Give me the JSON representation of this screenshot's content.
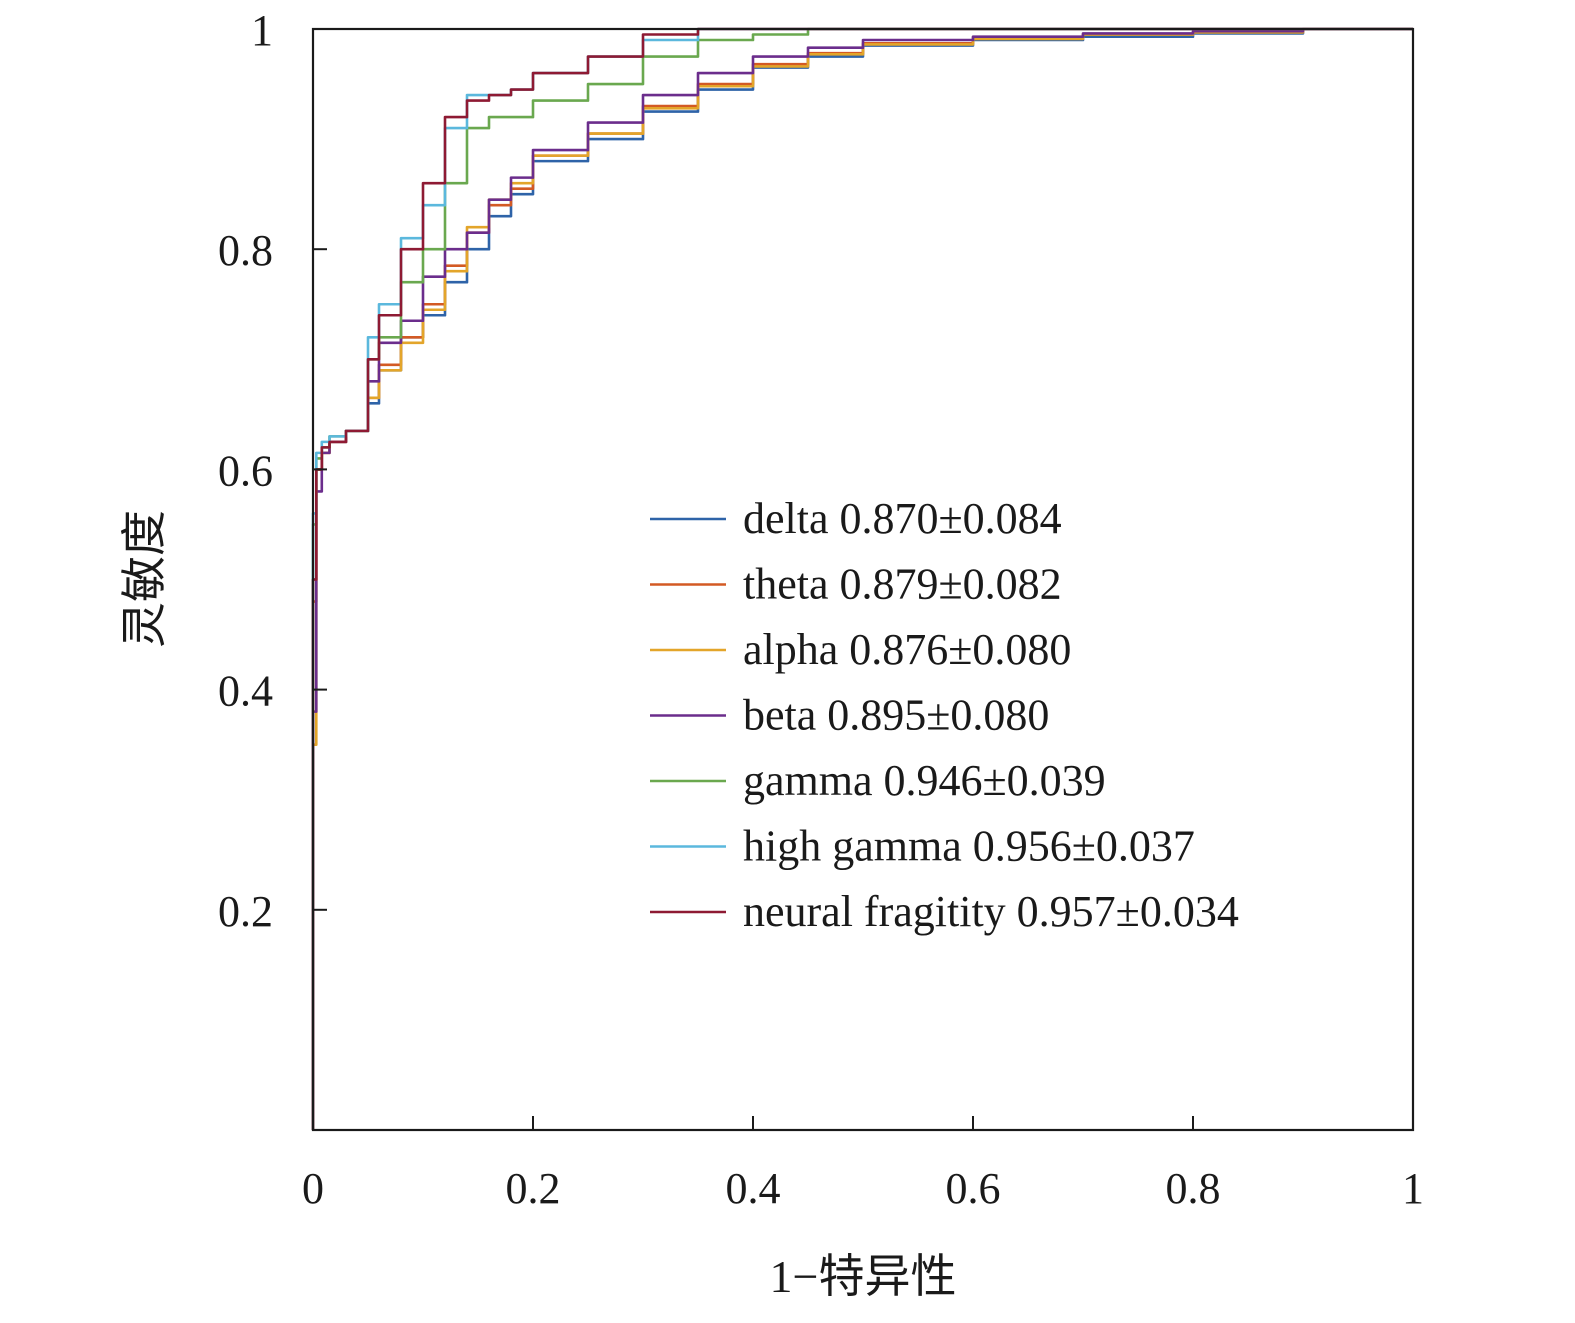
{
  "chart_data": {
    "type": "line",
    "title": "",
    "xlabel": "1−特异性",
    "ylabel": "灵敏度",
    "xlim": [
      0,
      1
    ],
    "ylim": [
      0,
      1
    ],
    "xticks": [
      "0",
      "0.2",
      "0.4",
      "0.6",
      "0.8",
      "1"
    ],
    "yticks": [
      "0.2",
      "0.4",
      "0.6",
      "0.8",
      "1"
    ],
    "xtick_values": [
      0,
      0.2,
      0.4,
      0.6,
      0.8,
      1
    ],
    "ytick_values": [
      0.2,
      0.4,
      0.6,
      0.8,
      1
    ],
    "grid": false,
    "legend_position": "right-middle",
    "series": [
      {
        "name": "delta 0.870±0.084",
        "color": "#2e63a8",
        "x": [
          0,
          0.003,
          0.008,
          0.015,
          0.03,
          0.05,
          0.06,
          0.08,
          0.1,
          0.12,
          0.14,
          0.16,
          0.18,
          0.2,
          0.25,
          0.3,
          0.35,
          0.4,
          0.45,
          0.5,
          0.6,
          0.7,
          0.8,
          0.9,
          1
        ],
        "y": [
          0,
          0.5,
          0.6,
          0.62,
          0.625,
          0.635,
          0.66,
          0.69,
          0.72,
          0.74,
          0.77,
          0.8,
          0.83,
          0.85,
          0.88,
          0.9,
          0.925,
          0.945,
          0.965,
          0.975,
          0.985,
          0.99,
          0.993,
          0.996,
          1
        ]
      },
      {
        "name": "theta 0.879±0.082",
        "color": "#d35a24",
        "x": [
          0,
          0.003,
          0.008,
          0.015,
          0.03,
          0.05,
          0.06,
          0.08,
          0.1,
          0.12,
          0.14,
          0.16,
          0.18,
          0.2,
          0.25,
          0.3,
          0.35,
          0.4,
          0.45,
          0.5,
          0.6,
          0.7,
          0.8,
          0.9,
          1
        ],
        "y": [
          0,
          0.48,
          0.6,
          0.615,
          0.625,
          0.635,
          0.665,
          0.695,
          0.72,
          0.75,
          0.785,
          0.815,
          0.84,
          0.855,
          0.885,
          0.905,
          0.93,
          0.95,
          0.968,
          0.978,
          0.987,
          0.992,
          0.995,
          0.997,
          1
        ]
      },
      {
        "name": "alpha 0.876±0.080",
        "color": "#e3a52a",
        "x": [
          0,
          0.003,
          0.008,
          0.015,
          0.03,
          0.05,
          0.06,
          0.08,
          0.1,
          0.12,
          0.14,
          0.16,
          0.18,
          0.2,
          0.25,
          0.3,
          0.35,
          0.4,
          0.45,
          0.5,
          0.6,
          0.7,
          0.8,
          0.9,
          1
        ],
        "y": [
          0,
          0.35,
          0.6,
          0.615,
          0.625,
          0.635,
          0.665,
          0.69,
          0.715,
          0.745,
          0.78,
          0.82,
          0.845,
          0.86,
          0.885,
          0.905,
          0.928,
          0.948,
          0.966,
          0.977,
          0.986,
          0.991,
          0.995,
          0.997,
          1
        ]
      },
      {
        "name": "beta 0.895±0.080",
        "color": "#6b2d8c",
        "x": [
          0,
          0.003,
          0.008,
          0.015,
          0.03,
          0.05,
          0.06,
          0.08,
          0.1,
          0.12,
          0.14,
          0.16,
          0.18,
          0.2,
          0.25,
          0.3,
          0.35,
          0.4,
          0.45,
          0.5,
          0.6,
          0.7,
          0.8,
          0.9,
          1
        ],
        "y": [
          0,
          0.38,
          0.58,
          0.615,
          0.625,
          0.635,
          0.68,
          0.715,
          0.735,
          0.775,
          0.8,
          0.815,
          0.845,
          0.865,
          0.89,
          0.915,
          0.94,
          0.96,
          0.975,
          0.983,
          0.99,
          0.993,
          0.996,
          0.998,
          1
        ]
      },
      {
        "name": "gamma 0.946±0.039",
        "color": "#6aa84f",
        "x": [
          0,
          0.003,
          0.008,
          0.015,
          0.03,
          0.05,
          0.06,
          0.08,
          0.1,
          0.12,
          0.14,
          0.16,
          0.18,
          0.2,
          0.25,
          0.3,
          0.35,
          0.4,
          0.45,
          0.5,
          0.6,
          0.7,
          0.8,
          0.9,
          1
        ],
        "y": [
          0,
          0.55,
          0.61,
          0.62,
          0.63,
          0.635,
          0.7,
          0.72,
          0.77,
          0.8,
          0.86,
          0.91,
          0.92,
          0.92,
          0.935,
          0.95,
          0.975,
          0.99,
          0.995,
          1,
          1,
          1,
          1,
          1,
          1
        ]
      },
      {
        "name": "high gamma 0.956±0.037",
        "color": "#5bb8dd",
        "x": [
          0,
          0.003,
          0.008,
          0.015,
          0.03,
          0.05,
          0.06,
          0.08,
          0.1,
          0.12,
          0.14,
          0.16,
          0.18,
          0.2,
          0.25,
          0.3,
          0.35,
          0.4,
          0.45,
          0.5,
          0.6,
          0.7,
          0.8,
          0.9,
          1
        ],
        "y": [
          0,
          0.56,
          0.615,
          0.625,
          0.63,
          0.635,
          0.72,
          0.75,
          0.81,
          0.84,
          0.91,
          0.94,
          0.94,
          0.945,
          0.96,
          0.975,
          0.99,
          1,
          1,
          1,
          1,
          1,
          1,
          1,
          1
        ]
      },
      {
        "name": "neural fragitity 0.957±0.034",
        "color": "#8e1a33",
        "x": [
          0,
          0.003,
          0.008,
          0.015,
          0.03,
          0.05,
          0.06,
          0.08,
          0.1,
          0.12,
          0.14,
          0.16,
          0.18,
          0.2,
          0.25,
          0.3,
          0.35,
          0.4,
          0.45,
          0.5,
          0.6,
          0.7,
          0.8,
          0.9,
          1
        ],
        "y": [
          0,
          0.5,
          0.6,
          0.62,
          0.625,
          0.635,
          0.7,
          0.74,
          0.8,
          0.86,
          0.92,
          0.935,
          0.94,
          0.945,
          0.96,
          0.975,
          0.995,
          1,
          1,
          1,
          1,
          1,
          1,
          1,
          1
        ]
      }
    ]
  }
}
